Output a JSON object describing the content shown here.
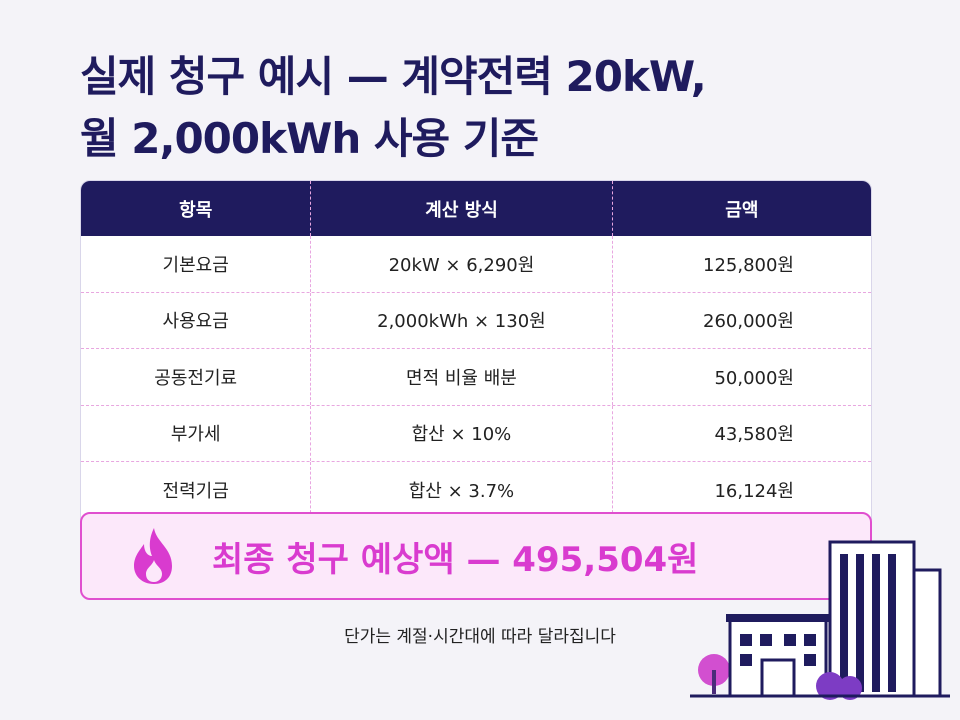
{
  "header": {
    "title_lines": [
      "실제 청구 예시 — 계약전력 20kW,",
      "월 2,000kWh 사용 기준"
    ]
  },
  "table": {
    "columns": [
      "항목",
      "계산 방식",
      "금액"
    ],
    "rows": [
      [
        "기본요금",
        "20kW × 6,290원",
        "125,800원"
      ],
      [
        "사용요금",
        "2,000kWh × 130원",
        "260,000원"
      ],
      [
        "공동전기료",
        "면적 비율 배분",
        "50,000원"
      ],
      [
        "부가세",
        "합산 × 10%",
        "43,580원"
      ],
      [
        "전력기금",
        "합산 × 3.7%",
        "16,124원"
      ]
    ]
  },
  "total": {
    "text": "최종 청구 예상액 — 495,504원"
  },
  "footnote": "단가는 계절·시간대에 따라 달라집니다"
}
